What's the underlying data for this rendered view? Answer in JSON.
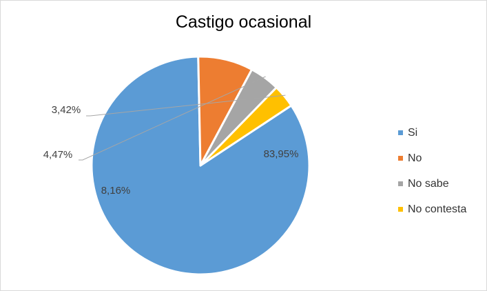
{
  "chart_data": {
    "type": "pie",
    "title": "Castigo ocasional",
    "categories": [
      "Si",
      "No",
      "No sabe",
      "No contesta"
    ],
    "values": [
      83.95,
      8.16,
      4.47,
      3.42
    ],
    "value_labels": [
      "83,95%",
      "8,16%",
      "4,47%",
      "3,42%"
    ],
    "colors": [
      "#5b9bd5",
      "#ed7d31",
      "#a5a5a5",
      "#ffc000"
    ],
    "legend_position": "right"
  }
}
